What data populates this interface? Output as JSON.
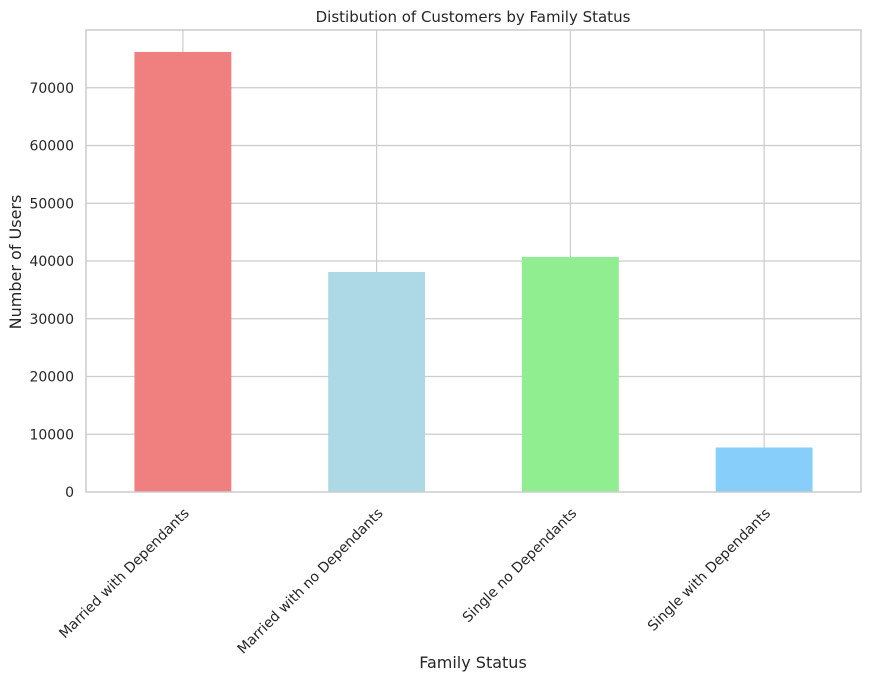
{
  "chart_data": {
    "type": "bar",
    "title": "Distibution of Customers by Family Status",
    "xlabel": "Family Status",
    "ylabel": "Number of Users",
    "categories": [
      "Married with  Dependants",
      "Married with no Dependants",
      "Single no Dependants",
      "Single with Dependants"
    ],
    "values": [
      76200,
      38100,
      40700,
      7700
    ],
    "bar_colors": [
      "#f08080",
      "#add8e6",
      "#90ee90",
      "#87cefa"
    ],
    "ylim": [
      0,
      80000
    ],
    "yticks": [
      0,
      10000,
      20000,
      30000,
      40000,
      50000,
      60000,
      70000
    ],
    "ytick_labels": [
      "0",
      "10000",
      "20000",
      "30000",
      "40000",
      "50000",
      "60000",
      "70000"
    ],
    "grid": true,
    "legend": false,
    "x_tick_rotation": "45 degrees"
  },
  "colors": {
    "background": "#ffffff",
    "grid": "#cccccc",
    "spine": "#cccccc",
    "text": "#262626"
  }
}
